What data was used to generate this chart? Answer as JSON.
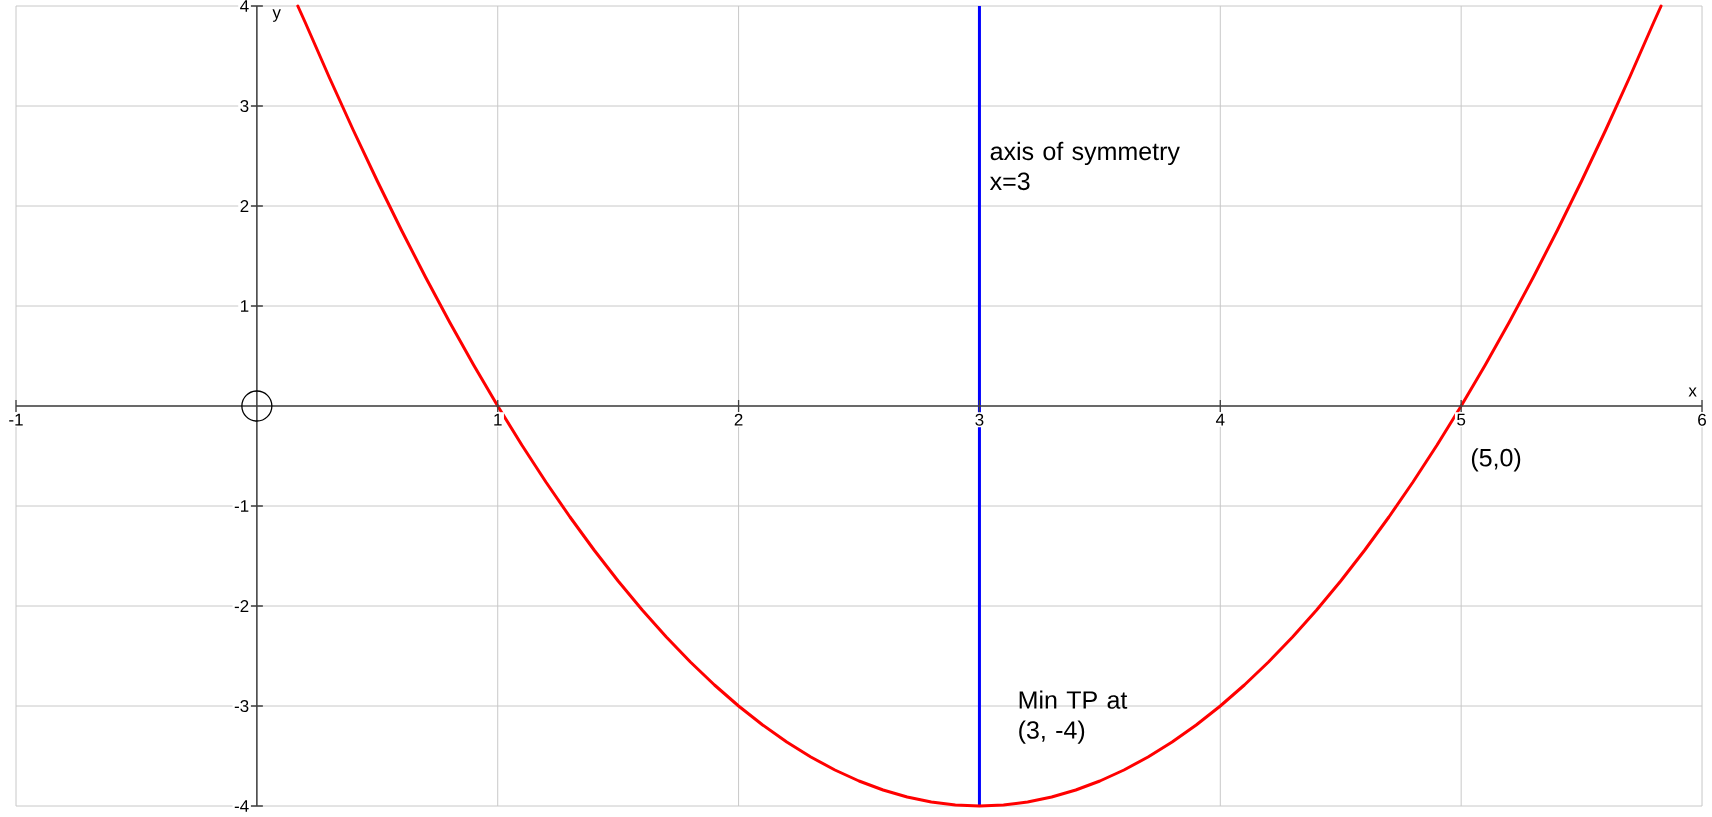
{
  "chart_data": {
    "type": "line",
    "xlabel": "x",
    "ylabel": "y",
    "series": [
      {
        "color": "#ff0000",
        "x": [
          0.17,
          0.2,
          0.3,
          0.4,
          0.5,
          0.6,
          0.7,
          0.8,
          0.9,
          1.0,
          1.1,
          1.2,
          1.3,
          1.4,
          1.5,
          1.6,
          1.7,
          1.8,
          1.9,
          2.0,
          2.1,
          2.2,
          2.3,
          2.4,
          2.5,
          2.6,
          2.7,
          2.8,
          2.9,
          3.0,
          3.1,
          3.2,
          3.3,
          3.4,
          3.5,
          3.6,
          3.7,
          3.8,
          3.9,
          4.0,
          4.1,
          4.2,
          4.3,
          4.4,
          4.5,
          4.6,
          4.7,
          4.8,
          4.9,
          5.0,
          5.1,
          5.2,
          5.3,
          5.4,
          5.5,
          5.6,
          5.7,
          5.8,
          5.83
        ],
        "values": [
          4.0,
          3.84,
          3.29,
          2.76,
          2.25,
          1.76,
          1.29,
          0.84,
          0.41,
          0,
          -0.39,
          -0.76,
          -1.11,
          -1.44,
          -1.75,
          -2.04,
          -2.31,
          -2.56,
          -2.79,
          -3,
          -3.19,
          -3.36,
          -3.51,
          -3.64,
          -3.75,
          -3.84,
          -3.91,
          -3.96,
          -3.99,
          -4,
          -3.99,
          -3.96,
          -3.91,
          -3.84,
          -3.75,
          -3.64,
          -3.51,
          -3.36,
          -3.19,
          -3,
          -2.79,
          -2.56,
          -2.31,
          -2.04,
          -1.75,
          -1.44,
          -1.11,
          -0.76,
          -0.39,
          0,
          0.41,
          0.84,
          1.29,
          1.76,
          2.25,
          2.76,
          3.29,
          3.84,
          4.0
        ]
      },
      {
        "type": "scatter",
        "color": "#000000",
        "marker": "circle",
        "x": [
          0
        ],
        "values": [
          0
        ]
      }
    ],
    "xlim": [
      -1,
      6
    ],
    "ylim": [
      -4,
      4
    ],
    "xticks": [
      -1,
      {
        "value": 0,
        "label": null
      },
      1,
      2,
      3,
      4,
      5,
      6
    ],
    "yticks": [
      -4,
      -3,
      -2,
      -1,
      {
        "value": 0,
        "label": null
      },
      1,
      2,
      3,
      4
    ],
    "grid": true,
    "ref_lines": [
      {
        "axis": "x",
        "value": 3,
        "label": "axis of symmetry x=3",
        "color": "#0000ff"
      }
    ],
    "annotations": [
      {
        "text": "(5,0)",
        "x": 5,
        "y": 0
      },
      {
        "text": "Min TP at (3, -4)",
        "x": 3,
        "y": -4
      }
    ]
  }
}
